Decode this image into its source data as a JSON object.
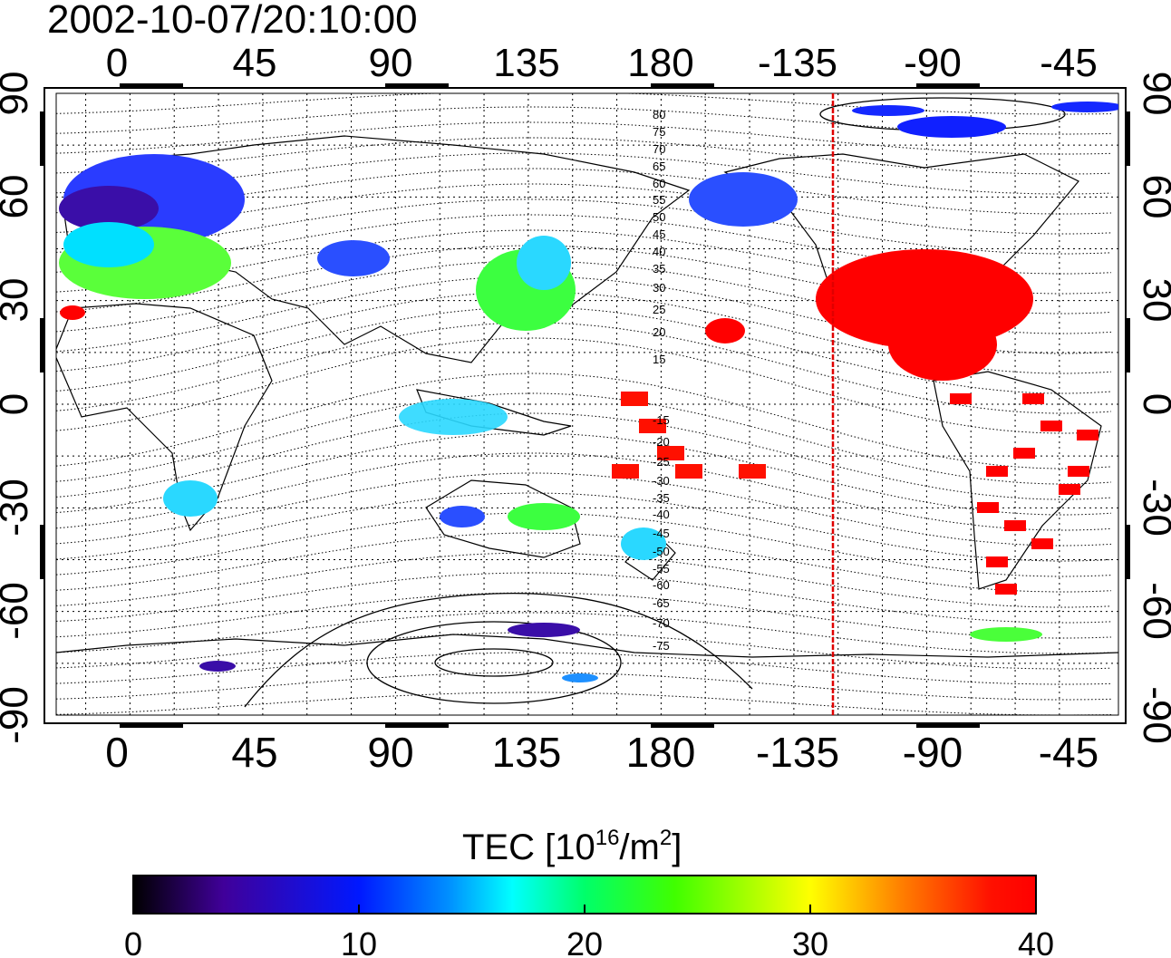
{
  "timestamp": "2002-10-07/20:10:00",
  "map": {
    "top_lon_ticks": [
      "0",
      "45",
      "90",
      "135",
      "180",
      "-135",
      "-90",
      "-45"
    ],
    "bottom_lon_ticks": [
      "0",
      "45",
      "90",
      "135",
      "180",
      "-135",
      "-90",
      "-45"
    ],
    "left_lat_ticks": [
      "90",
      "60",
      "30",
      "0",
      "-30",
      "-60",
      "-90"
    ],
    "right_lat_ticks": [
      "90",
      "60",
      "30",
      "0",
      "-30",
      "-60",
      "-90"
    ],
    "magnetic_latitude_labels": [
      "80",
      "75",
      "70",
      "65",
      "60",
      "55",
      "50",
      "45",
      "40",
      "35",
      "30",
      "25",
      "20",
      "15",
      "-15",
      "-20",
      "-25",
      "-30",
      "-35",
      "-40",
      "-45",
      "-50",
      "-55",
      "-60",
      "-65",
      "-70",
      "-75"
    ],
    "terminator_color": "#e00000"
  },
  "colorbar": {
    "title_main": "TEC  [10",
    "title_sup1": "16",
    "title_mid": "/m",
    "title_sup2": "2",
    "title_end": "]",
    "ticks": [
      "0",
      "10",
      "20",
      "30",
      "40"
    ],
    "colors": [
      "#000000",
      "#40009a",
      "#0018ff",
      "#0090ff",
      "#00ffff",
      "#00ff6a",
      "#40ff00",
      "#ffff00",
      "#ff8000",
      "#ff1000",
      "#ff0000"
    ]
  },
  "data_regions": [
    {
      "name": "europe",
      "color": "#2a4fff"
    },
    {
      "name": "north-america",
      "color": "#ff0000"
    },
    {
      "name": "east-asia",
      "color": "#3cff40"
    },
    {
      "name": "south-america",
      "color": "#ff0000"
    },
    {
      "name": "japan",
      "color": "#2ad8ff"
    }
  ]
}
